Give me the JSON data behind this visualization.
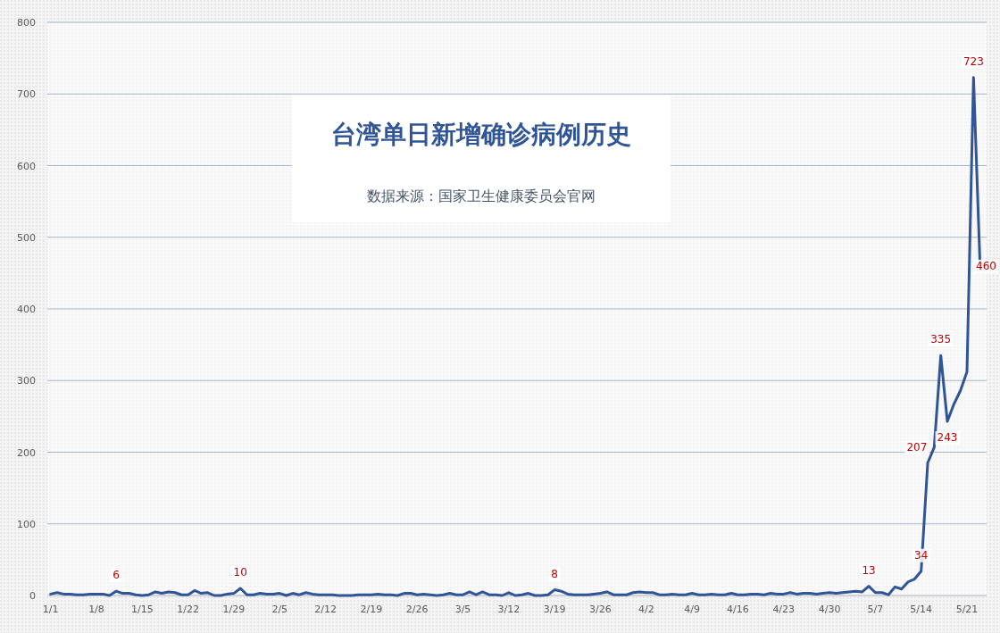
{
  "chart_data": {
    "type": "line",
    "title": "台湾单日新增确诊病例历史",
    "annotations": [
      "数据来源：国家卫生健康委员会官网"
    ],
    "categories": [
      "1/1",
      null,
      null,
      null,
      null,
      null,
      null,
      "1/8",
      null,
      null,
      null,
      null,
      null,
      null,
      "1/15",
      null,
      null,
      null,
      null,
      null,
      null,
      "1/22",
      null,
      null,
      null,
      null,
      null,
      null,
      "1/29",
      null,
      null,
      null,
      null,
      null,
      null,
      "2/5",
      null,
      null,
      null,
      null,
      null,
      null,
      "2/12",
      null,
      null,
      null,
      null,
      null,
      null,
      "2/19",
      null,
      null,
      null,
      null,
      null,
      null,
      "2/26",
      null,
      null,
      null,
      null,
      null,
      null,
      "3/5",
      null,
      null,
      null,
      null,
      null,
      null,
      "3/12",
      null,
      null,
      null,
      null,
      null,
      null,
      "3/19",
      null,
      null,
      null,
      null,
      null,
      null,
      "3/26",
      null,
      null,
      null,
      null,
      null,
      null,
      "4/2",
      null,
      null,
      null,
      null,
      null,
      null,
      "4/9",
      null,
      null,
      null,
      null,
      null,
      null,
      "4/16",
      null,
      null,
      null,
      null,
      null,
      null,
      "4/23",
      null,
      null,
      null,
      null,
      null,
      null,
      "4/30",
      null,
      null,
      null,
      null,
      null,
      null,
      "5/7",
      null,
      null,
      null,
      null,
      null,
      null,
      "5/14",
      null,
      null,
      null,
      null,
      null,
      null,
      "5/21",
      null,
      null
    ],
    "series": [
      {
        "color": "#2f5597",
        "values": [
          2,
          4,
          2,
          2,
          1,
          1,
          2,
          2,
          2,
          0,
          6,
          3,
          3,
          1,
          0,
          1,
          5,
          3,
          5,
          4,
          1,
          1,
          7,
          3,
          4,
          0,
          0,
          2,
          3,
          10,
          1,
          1,
          3,
          2,
          2,
          3,
          0,
          3,
          1,
          4,
          2,
          1,
          1,
          1,
          0,
          0,
          0,
          1,
          1,
          1,
          2,
          1,
          1,
          0,
          3,
          3,
          1,
          2,
          1,
          0,
          1,
          3,
          1,
          1,
          5,
          1,
          5,
          1,
          1,
          0,
          4,
          0,
          1,
          3,
          0,
          0,
          1,
          8,
          6,
          2,
          1,
          1,
          1,
          2,
          3,
          5,
          1,
          1,
          1,
          4,
          5,
          4,
          4,
          1,
          1,
          2,
          1,
          1,
          3,
          1,
          1,
          2,
          1,
          1,
          3,
          1,
          1,
          2,
          2,
          1,
          3,
          2,
          2,
          4,
          2,
          3,
          3,
          2,
          3,
          4,
          3,
          4,
          5,
          6,
          5,
          13,
          4,
          4,
          1,
          12,
          9,
          19,
          23,
          34,
          185,
          207,
          335,
          243,
          267,
          286,
          312,
          723,
          460
        ],
        "value_labels": [
          null,
          null,
          null,
          null,
          null,
          null,
          null,
          null,
          null,
          null,
          "6",
          null,
          null,
          null,
          null,
          null,
          null,
          null,
          null,
          null,
          null,
          null,
          null,
          null,
          null,
          null,
          null,
          null,
          null,
          "10",
          null,
          null,
          null,
          null,
          null,
          null,
          null,
          null,
          null,
          null,
          null,
          null,
          null,
          null,
          null,
          null,
          null,
          null,
          null,
          null,
          null,
          null,
          null,
          null,
          null,
          null,
          null,
          null,
          null,
          null,
          null,
          null,
          null,
          null,
          null,
          null,
          null,
          null,
          null,
          null,
          null,
          null,
          null,
          null,
          null,
          null,
          null,
          "8",
          null,
          null,
          null,
          null,
          null,
          null,
          null,
          null,
          null,
          null,
          null,
          null,
          null,
          null,
          null,
          null,
          null,
          null,
          null,
          null,
          null,
          null,
          null,
          null,
          null,
          null,
          null,
          null,
          null,
          null,
          null,
          null,
          null,
          null,
          null,
          null,
          null,
          null,
          null,
          null,
          null,
          null,
          null,
          null,
          null,
          null,
          null,
          "13",
          null,
          null,
          null,
          null,
          null,
          null,
          null,
          "34",
          null,
          "207",
          "335",
          "243",
          null,
          null,
          null,
          "723",
          "460"
        ]
      }
    ],
    "ylim": [
      0,
      800
    ],
    "yticks": [
      0,
      100,
      200,
      300,
      400,
      500,
      600,
      700,
      800
    ],
    "grid": "y"
  }
}
